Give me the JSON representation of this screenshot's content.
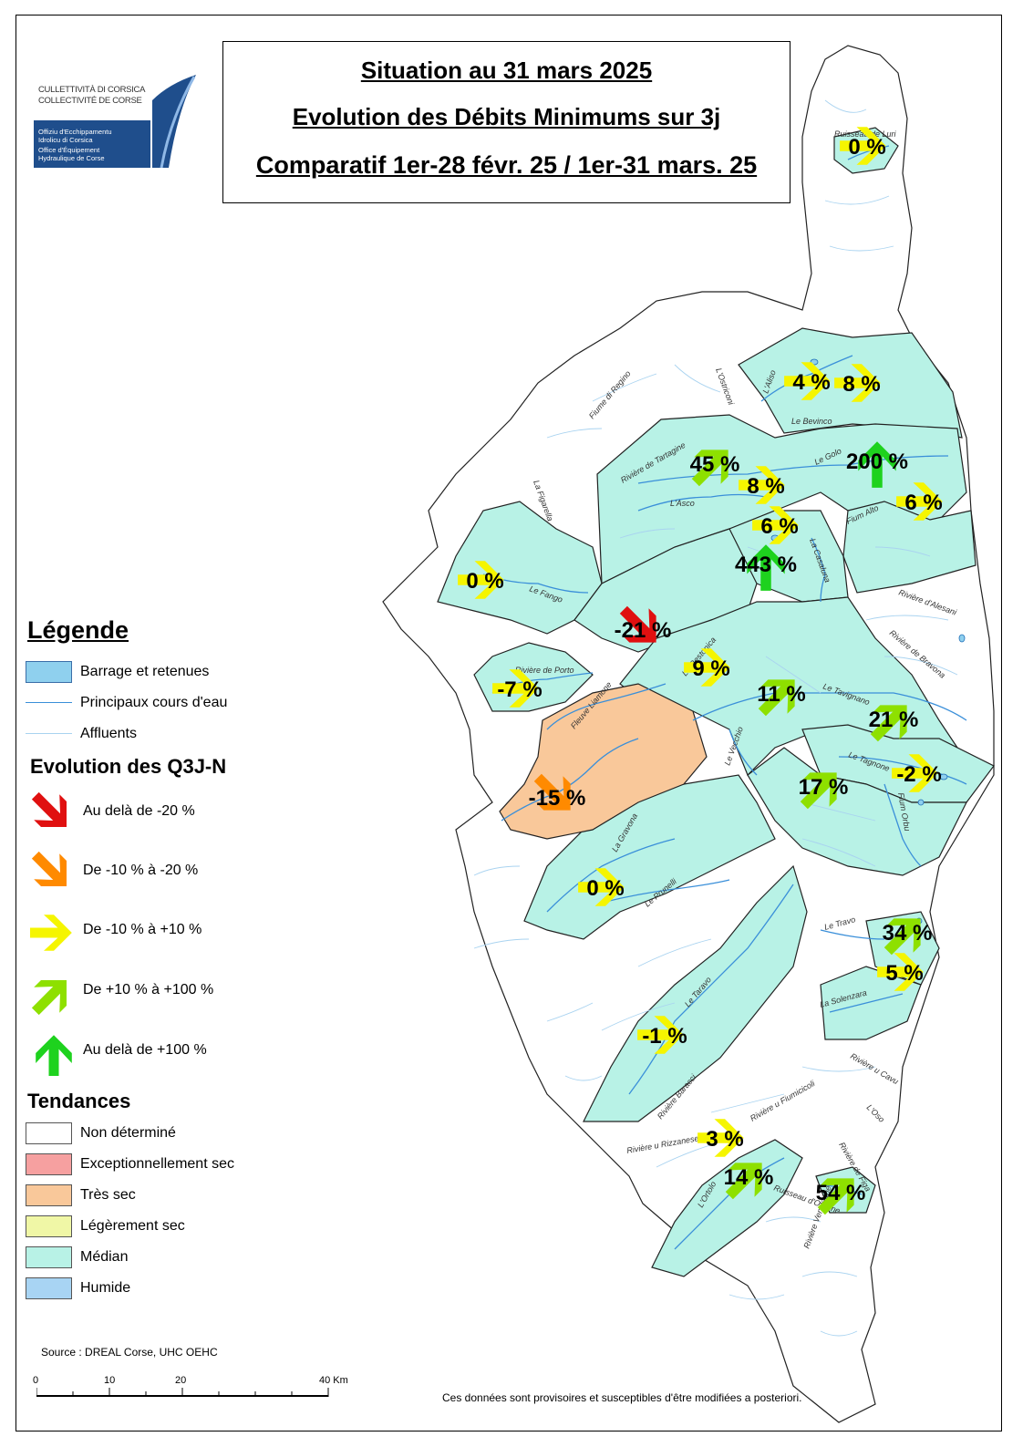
{
  "logo": {
    "line1": "CULLETTIVITÀ DI CORSICA",
    "line2": "COLLECTIVITÉ DE CORSE",
    "line3": "Offiziu d'Ecchippamentu",
    "line4": "Idrolicu di Corsica",
    "line5": "Office d'Équipement",
    "line6": "Hydraulique de Corse"
  },
  "title": {
    "line1": "Situation au 31 mars 2025",
    "line2": "Evolution des Débits Minimums sur 3j",
    "line3": "Comparatif 1er-28 févr. 25 / 1er-31 mars. 25"
  },
  "colors": {
    "median": "#b8f2e6",
    "very_dry": "#f9c89a",
    "not_determined": "#ffffff",
    "exceptionally_dry": "#f6a0a0",
    "slightly_dry": "#f0f7a6",
    "humid": "#a8d4f3",
    "reservoir": "#8fd0ee",
    "river_main": "#3a8fd9",
    "river_minor": "#a9d3f0",
    "arrow_red": "#e01010",
    "arrow_orange": "#ff8a00",
    "arrow_yellow": "#f5f500",
    "arrow_lightgreen": "#8ee000",
    "arrow_green": "#1ed21e"
  },
  "stations": [
    {
      "label": "0 %",
      "trend": "yellow"
    },
    {
      "label": "4 %",
      "trend": "yellow"
    },
    {
      "label": "8 %",
      "trend": "yellow"
    },
    {
      "label": "45 %",
      "trend": "lightgreen"
    },
    {
      "label": "200 %",
      "trend": "green"
    },
    {
      "label": "8 %",
      "trend": "yellow"
    },
    {
      "label": "6 %",
      "trend": "yellow"
    },
    {
      "label": "6 %",
      "trend": "yellow"
    },
    {
      "label": "443 %",
      "trend": "green"
    },
    {
      "label": "0 %",
      "trend": "yellow"
    },
    {
      "label": "-21 %",
      "trend": "red"
    },
    {
      "label": "9 %",
      "trend": "yellow"
    },
    {
      "label": "-7 %",
      "trend": "yellow"
    },
    {
      "label": "11 %",
      "trend": "lightgreen"
    },
    {
      "label": "21 %",
      "trend": "lightgreen"
    },
    {
      "label": "-2 %",
      "trend": "yellow"
    },
    {
      "label": "17 %",
      "trend": "lightgreen"
    },
    {
      "label": "-15 %",
      "trend": "orange"
    },
    {
      "label": "0 %",
      "trend": "yellow"
    },
    {
      "label": "34 %",
      "trend": "lightgreen"
    },
    {
      "label": "5 %",
      "trend": "yellow"
    },
    {
      "label": "-1 %",
      "trend": "yellow"
    },
    {
      "label": "3 %",
      "trend": "yellow"
    },
    {
      "label": "14 %",
      "trend": "lightgreen"
    },
    {
      "label": "54 %",
      "trend": "lightgreen"
    }
  ],
  "rivers": [
    "Ruisseau de Luri",
    "L'Ostriconi",
    "L'Aliso",
    "Le Bevinco",
    "Fiume di Regino",
    "Rivière de Tartagine",
    "L'Asco",
    "Le Golo",
    "Fium Alto",
    "La Figarella",
    "Le Fango",
    "La Casaluna",
    "Rivière d'Alesani",
    "Rivière de Bravona",
    "Rivière de Porto",
    "Fleuve Liamone",
    "La Restonica",
    "Le Tavignano",
    "Le Vecchio",
    "Le Tagnone",
    "Fium Orbu",
    "La Gravona",
    "Le Prunelli",
    "Le Travo",
    "La Solenzara",
    "Le Taravo",
    "Rivière Baracci",
    "Rivière u Fiumicicoli",
    "Rivière u Rizzanese",
    "L'Oso",
    "Rivière u Cavu",
    "L'Ortolo",
    "Ruisseau d'Orgone",
    "Rivière de Figa",
    "Rivière Ventilegne"
  ],
  "legend": {
    "title": "Légende",
    "items": [
      {
        "label": "Barrage et retenues"
      },
      {
        "label": "Principaux cours d'eau"
      },
      {
        "label": "Affluents"
      }
    ],
    "q3j_title": "Evolution des Q3J-N",
    "q3j_items": [
      {
        "label": "Au delà de -20 %",
        "trend": "red"
      },
      {
        "label": "De -10 % à -20 %",
        "trend": "orange"
      },
      {
        "label": "De -10 % à +10 %",
        "trend": "yellow"
      },
      {
        "label": "De +10 % à +100 %",
        "trend": "lightgreen"
      },
      {
        "label": "Au delà de +100 %",
        "trend": "green"
      }
    ],
    "tendances_title": "Tendances",
    "tendances_items": [
      {
        "label": "Non déterminé"
      },
      {
        "label": "Exceptionnellement sec"
      },
      {
        "label": "Très sec"
      },
      {
        "label": "Légèrement sec"
      },
      {
        "label": "Médian"
      },
      {
        "label": "Humide"
      }
    ]
  },
  "source": "Source : DREAL Corse, UHC OEHC",
  "scale": {
    "t0": "0",
    "t10": "10",
    "t20": "20",
    "t40": "40 Km"
  },
  "disclaimer": "Ces données sont provisoires et susceptibles d'être modifiées a posteriori."
}
